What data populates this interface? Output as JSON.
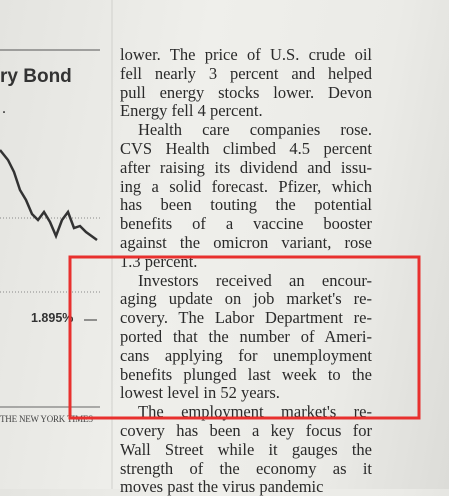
{
  "left_column": {
    "heading": "ry Bond",
    "chart_label": "1.895%",
    "credit": "THE NEW YORK TIMES"
  },
  "article": {
    "paragraphs": [
      {
        "lines": [
          "lower. The price of U.S. crude oil",
          "fell nearly 3 percent and helped",
          "pull energy stocks lower. Devon",
          "Energy fell 4 percent."
        ]
      },
      {
        "lines": [
          "Health care companies rose.",
          "CVS Health climbed 4.5 percent",
          "after raising its dividend and issu-",
          "ing a solid forecast. Pfizer, which",
          "has been touting the potential",
          "benefits of a vaccine booster",
          "against the omicron variant, rose",
          "1.3 percent."
        ]
      },
      {
        "lines": [
          "Investors received an encour-",
          "aging update on job market's re-",
          "covery. The Labor Department re-",
          "ported that the number of Ameri-",
          "cans applying for unemployment",
          "benefits plunged last week to the",
          "lowest level in 52 years."
        ]
      },
      {
        "lines": [
          "The employment market's re-",
          "covery has been a key focus for",
          "Wall Street while it gauges the",
          "strength of the economy as it",
          "moves past the virus pandemic"
        ]
      }
    ]
  }
}
